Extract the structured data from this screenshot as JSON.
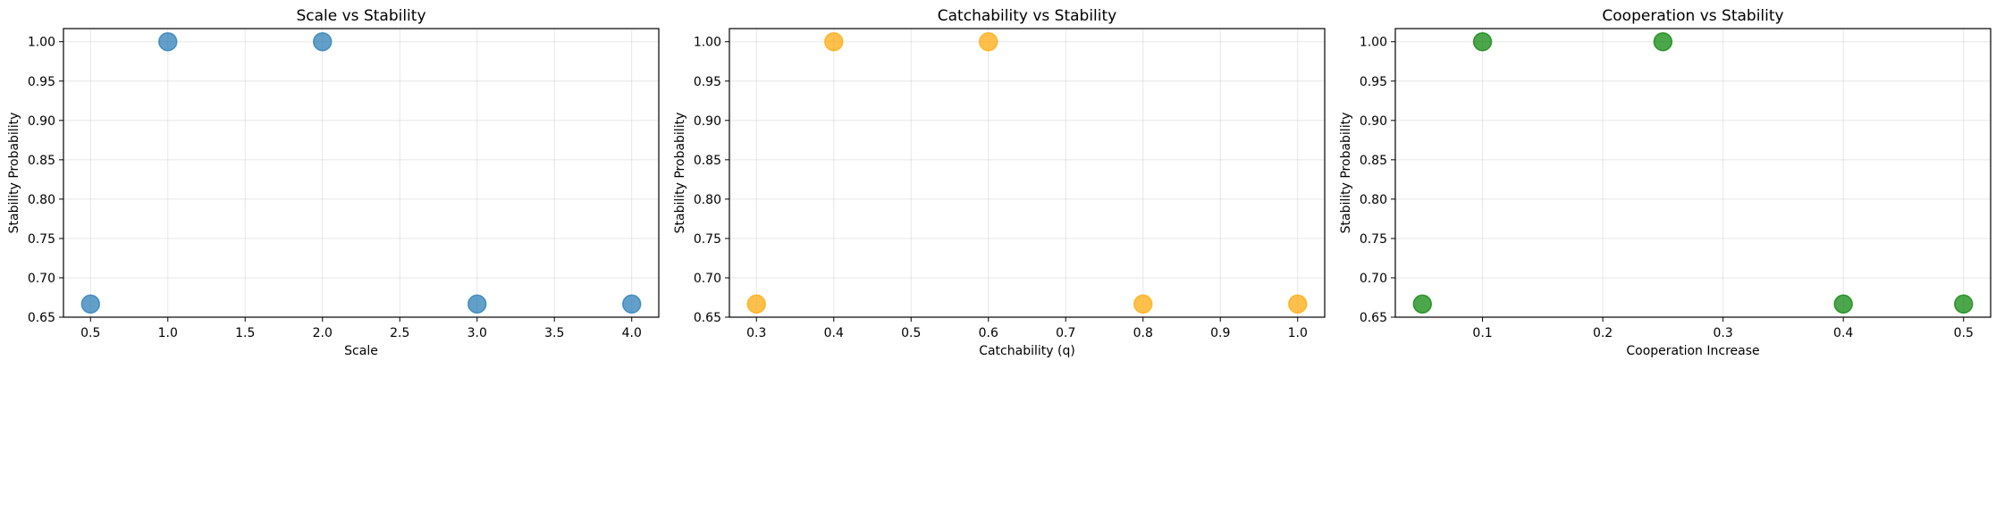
{
  "chart_data": [
    {
      "type": "scatter",
      "title": "Scale vs Stability",
      "xlabel": "Scale",
      "ylabel": "Stability Probability",
      "x": [
        0.5,
        1.0,
        2.0,
        3.0,
        4.0
      ],
      "y": [
        0.6667,
        1.0,
        1.0,
        0.6667,
        0.6667
      ],
      "color": "#1f77b4",
      "alpha": 0.7,
      "xlim": [
        0.325,
        4.175
      ],
      "ylim": [
        0.65,
        1.0167
      ],
      "xticks": [
        0.5,
        1.0,
        1.5,
        2.0,
        2.5,
        3.0,
        3.5,
        4.0
      ],
      "xtick_labels": [
        "0.5",
        "1.0",
        "1.5",
        "2.0",
        "2.5",
        "3.0",
        "3.5",
        "4.0"
      ],
      "yticks": [
        0.65,
        0.7,
        0.75,
        0.8,
        0.85,
        0.9,
        0.95,
        1.0
      ],
      "ytick_labels": [
        "0.65",
        "0.70",
        "0.75",
        "0.80",
        "0.85",
        "0.90",
        "0.95",
        "1.00"
      ],
      "grid": true
    },
    {
      "type": "scatter",
      "title": "Catchability vs Stability",
      "xlabel": "Catchability (q)",
      "ylabel": "Stability Probability",
      "x": [
        0.3,
        0.4,
        0.6,
        0.8,
        1.0
      ],
      "y": [
        0.6667,
        1.0,
        1.0,
        0.6667,
        0.6667
      ],
      "color": "#ffa500",
      "alpha": 0.7,
      "xlim": [
        0.265,
        1.035
      ],
      "ylim": [
        0.65,
        1.0167
      ],
      "xticks": [
        0.3,
        0.4,
        0.5,
        0.6,
        0.7,
        0.8,
        0.9,
        1.0
      ],
      "xtick_labels": [
        "0.3",
        "0.4",
        "0.5",
        "0.6",
        "0.7",
        "0.8",
        "0.9",
        "1.0"
      ],
      "yticks": [
        0.65,
        0.7,
        0.75,
        0.8,
        0.85,
        0.9,
        0.95,
        1.0
      ],
      "ytick_labels": [
        "0.65",
        "0.70",
        "0.75",
        "0.80",
        "0.85",
        "0.90",
        "0.95",
        "1.00"
      ],
      "grid": true
    },
    {
      "type": "scatter",
      "title": "Cooperation vs Stability",
      "xlabel": "Cooperation Increase",
      "ylabel": "Stability Probability",
      "x": [
        0.05,
        0.1,
        0.25,
        0.4,
        0.5
      ],
      "y": [
        0.6667,
        1.0,
        1.0,
        0.6667,
        0.6667
      ],
      "color": "#008000",
      "alpha": 0.7,
      "xlim": [
        0.0275,
        0.5225
      ],
      "ylim": [
        0.65,
        1.0167
      ],
      "xticks": [
        0.1,
        0.2,
        0.3,
        0.4,
        0.5
      ],
      "xtick_labels": [
        "0.1",
        "0.2",
        "0.3",
        "0.4",
        "0.5"
      ],
      "yticks": [
        0.65,
        0.7,
        0.75,
        0.8,
        0.85,
        0.9,
        0.95,
        1.0
      ],
      "ytick_labels": [
        "0.65",
        "0.70",
        "0.75",
        "0.80",
        "0.85",
        "0.90",
        "0.95",
        "1.00"
      ],
      "grid": true
    }
  ]
}
